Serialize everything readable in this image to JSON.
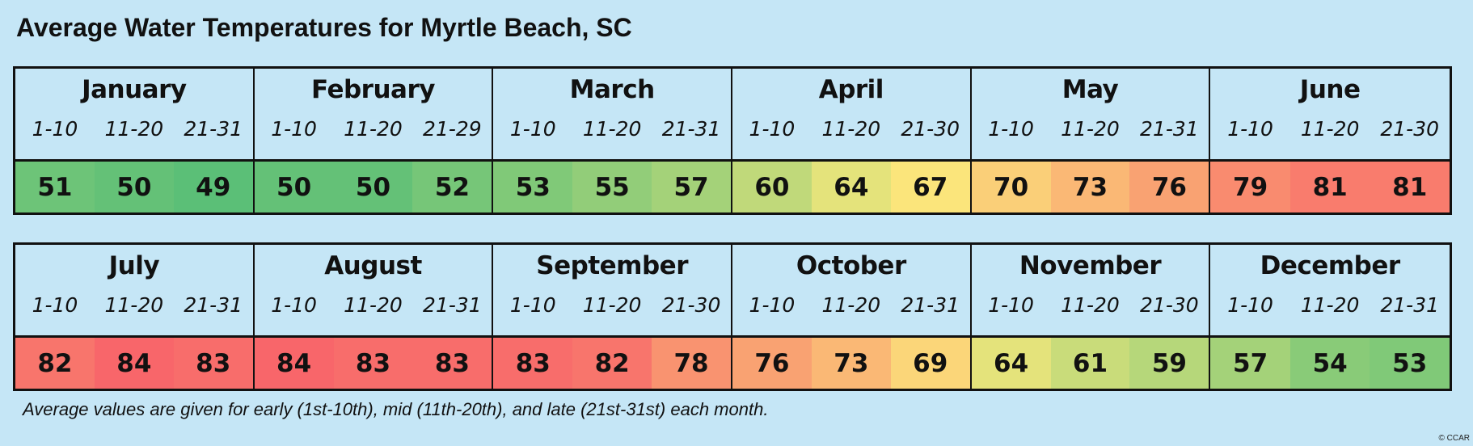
{
  "title": "Average Water Temperatures for Myrtle Beach, SC",
  "footnote": "Average values are given for early (1st-10th), mid (11th-20th), and late (21st-31st) each month.",
  "copyright": "© CCAR",
  "chart_data": {
    "type": "table",
    "title": "Average Water Temperatures for Myrtle Beach, SC",
    "months": [
      {
        "name": "January",
        "ranges": [
          "1-10",
          "11-20",
          "21-31"
        ],
        "values": [
          51,
          50,
          49
        ]
      },
      {
        "name": "February",
        "ranges": [
          "1-10",
          "11-20",
          "21-29"
        ],
        "values": [
          50,
          50,
          52
        ]
      },
      {
        "name": "March",
        "ranges": [
          "1-10",
          "11-20",
          "21-31"
        ],
        "values": [
          53,
          55,
          57
        ]
      },
      {
        "name": "April",
        "ranges": [
          "1-10",
          "11-20",
          "21-30"
        ],
        "values": [
          60,
          64,
          67
        ]
      },
      {
        "name": "May",
        "ranges": [
          "1-10",
          "11-20",
          "21-31"
        ],
        "values": [
          70,
          73,
          76
        ]
      },
      {
        "name": "June",
        "ranges": [
          "1-10",
          "11-20",
          "21-30"
        ],
        "values": [
          79,
          81,
          81
        ]
      },
      {
        "name": "July",
        "ranges": [
          "1-10",
          "11-20",
          "21-31"
        ],
        "values": [
          82,
          84,
          83
        ]
      },
      {
        "name": "August",
        "ranges": [
          "1-10",
          "11-20",
          "21-31"
        ],
        "values": [
          84,
          83,
          83
        ]
      },
      {
        "name": "September",
        "ranges": [
          "1-10",
          "11-20",
          "21-30"
        ],
        "values": [
          83,
          82,
          78
        ]
      },
      {
        "name": "October",
        "ranges": [
          "1-10",
          "11-20",
          "21-31"
        ],
        "values": [
          76,
          73,
          69
        ]
      },
      {
        "name": "November",
        "ranges": [
          "1-10",
          "11-20",
          "21-30"
        ],
        "values": [
          64,
          61,
          59
        ]
      },
      {
        "name": "December",
        "ranges": [
          "1-10",
          "11-20",
          "21-31"
        ],
        "values": [
          57,
          54,
          53
        ]
      }
    ],
    "color_scale": {
      "min_value": 49,
      "max_value": 84,
      "low_color": "#5bbf77",
      "mid_color": "#fbe97c",
      "high_color": "#f8666a"
    }
  }
}
